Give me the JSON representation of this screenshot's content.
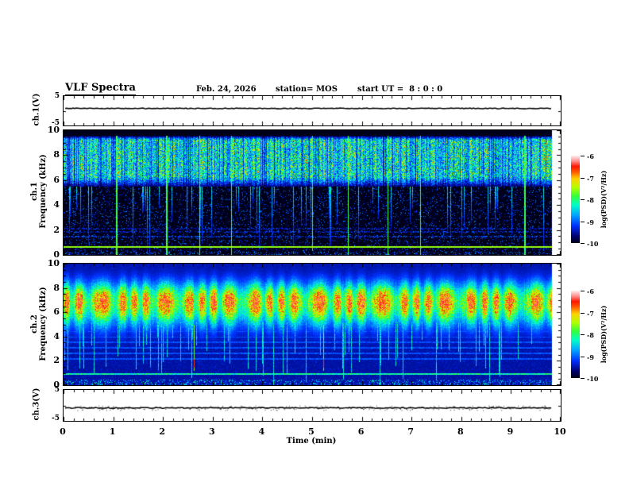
{
  "header": {
    "title": "VLF Spectra",
    "date": "Feb. 24, 2026",
    "station": "station= MOS",
    "start_ut": "start UT =  8 : 0 : 0"
  },
  "time_axis": {
    "label": "Time (min)",
    "ticks": [
      0,
      1,
      2,
      3,
      4,
      5,
      6,
      7,
      8,
      9,
      10
    ],
    "minor_per_major": 5,
    "range_min": [
      0,
      10
    ],
    "data_end_min": 9.82
  },
  "colormap": {
    "range_log_psd": [
      -10,
      -6
    ],
    "stops": [
      [
        0,
        "#000010"
      ],
      [
        0.08,
        "#00006e"
      ],
      [
        0.2,
        "#0030ff"
      ],
      [
        0.33,
        "#00aaff"
      ],
      [
        0.44,
        "#00ffc8"
      ],
      [
        0.54,
        "#32ff3c"
      ],
      [
        0.64,
        "#b4ff00"
      ],
      [
        0.74,
        "#ffd200"
      ],
      [
        0.81,
        "#ff6400"
      ],
      [
        0.88,
        "#ff1400"
      ],
      [
        0.94,
        "#ff8c8c"
      ],
      [
        1,
        "#ffeaea"
      ]
    ]
  },
  "chart_data": [
    {
      "id": "ch1-voltage",
      "type": "line",
      "ylabel": "ch.1(V)",
      "ylim": [
        -5,
        5
      ],
      "ytick_labels": [
        "5",
        "-5"
      ],
      "trace": {
        "mean_v": 0.3,
        "noise_v": 0.15,
        "description": "flat dark trace near 0 V for the whole record"
      }
    },
    {
      "id": "ch1-spectrogram",
      "type": "heatmap",
      "ylabel_line1": "ch.1",
      "ylabel_line2": "Frequency (kHz)",
      "ylim_khz": [
        0,
        10
      ],
      "ytick_values": [
        10,
        8,
        6,
        4,
        2,
        0
      ],
      "band_khz": [
        5.5,
        9.6
      ],
      "band_character": "dense blue-cyan-green vertical streaks on black background",
      "horizontal_lines_khz": [
        {
          "f": 0.65,
          "strength": 0.58
        },
        {
          "f": 1.5,
          "strength": 0.2
        },
        {
          "f": 1.9,
          "strength": 0.17
        },
        {
          "f": 2.15,
          "strength": 0.15
        }
      ],
      "vertical_events_min": [
        1.06,
        2.07,
        2.73,
        3.37,
        5.0,
        5.72,
        6.52,
        7.17,
        9.27
      ],
      "colorbar": {
        "label": "log(PSD)(V²/Hz)",
        "tick_labels": [
          "-6",
          "-7",
          "-8",
          "-9",
          "-10"
        ]
      }
    },
    {
      "id": "ch2-spectrogram",
      "type": "heatmap",
      "ylabel_line1": "ch.2",
      "ylabel_line2": "Frequency (kHz)",
      "ylim_khz": [
        0,
        10
      ],
      "ytick_values": [
        10,
        8,
        6,
        4,
        2,
        0
      ],
      "band_khz": [
        4.6,
        9.3
      ],
      "band_center_khz": 6.9,
      "band_character": "continuous band, green edges with yellow-red core, over dark blue noise",
      "horizontal_lines_khz": [
        {
          "f": 0.95,
          "strength": 0.45
        },
        {
          "f": 2.2,
          "strength": 0.2
        },
        {
          "f": 2.65,
          "strength": 0.2
        },
        {
          "f": 3.1,
          "strength": 0.2
        },
        {
          "f": 3.55,
          "strength": 0.2
        },
        {
          "f": 4.0,
          "strength": 0.2
        },
        {
          "f": 4.45,
          "strength": 0.2
        }
      ],
      "red_tip_events_min": [
        2.62,
        5.22
      ],
      "colorbar": {
        "label": "log(PSD)(V²/Hz)",
        "tick_labels": [
          "-6",
          "-7",
          "-8",
          "-9",
          "-10"
        ]
      }
    },
    {
      "id": "ch3-voltage",
      "type": "line",
      "ylabel": "ch.3(V)",
      "ylim": [
        -5,
        5
      ],
      "ytick_labels": [
        "5",
        "-5"
      ],
      "trace": {
        "mean_v": -0.5,
        "noise_v": 0.3,
        "description": "flat dark trace near 0 V with sparse tiny spikes"
      }
    }
  ]
}
